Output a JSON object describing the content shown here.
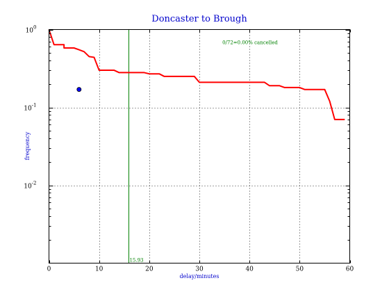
{
  "chart_data": {
    "type": "line",
    "title": "Doncaster to Brough",
    "xlabel": "delay/minutes",
    "ylabel": "frequency",
    "xlim": [
      0,
      60
    ],
    "ylim": [
      0.001,
      1
    ],
    "y_scale": "log",
    "grid": true,
    "x_ticks": [
      {
        "value": 0,
        "label": "0"
      },
      {
        "value": 10,
        "label": "10"
      },
      {
        "value": 20,
        "label": "20"
      },
      {
        "value": 30,
        "label": "30"
      },
      {
        "value": 40,
        "label": "40"
      },
      {
        "value": 50,
        "label": "50"
      },
      {
        "value": 60,
        "label": "60"
      }
    ],
    "y_ticks": [
      {
        "value": 1,
        "base": "10",
        "exp": "0"
      },
      {
        "value": 0.1,
        "base": "10",
        "exp": "-1"
      },
      {
        "value": 0.01,
        "base": "10",
        "exp": "-2"
      }
    ],
    "series": [
      {
        "color": "#ff0000",
        "x": [
          0,
          1,
          3,
          3,
          5,
          6,
          7,
          8,
          8,
          9,
          10,
          10,
          13,
          14,
          16,
          19,
          20,
          22,
          23,
          28,
          29,
          30,
          43,
          44,
          46,
          47,
          50,
          51,
          55,
          56,
          57,
          59
        ],
        "y": [
          1,
          0.64,
          0.64,
          0.58,
          0.58,
          0.55,
          0.52,
          0.45,
          0.45,
          0.44,
          0.3,
          0.3,
          0.3,
          0.28,
          0.28,
          0.28,
          0.27,
          0.27,
          0.25,
          0.25,
          0.25,
          0.21,
          0.21,
          0.19,
          0.19,
          0.18,
          0.18,
          0.17,
          0.17,
          0.12,
          0.07,
          0.07
        ]
      }
    ],
    "points": [
      {
        "x": 6,
        "y": 0.17,
        "color": "#0000ff"
      }
    ],
    "vline": {
      "x": 15.93,
      "label": "15.93",
      "color": "#008000"
    },
    "annotation": {
      "text": "0/72=0.00% cancelled",
      "x": 35,
      "y": 0.65,
      "color": "#008000"
    }
  }
}
